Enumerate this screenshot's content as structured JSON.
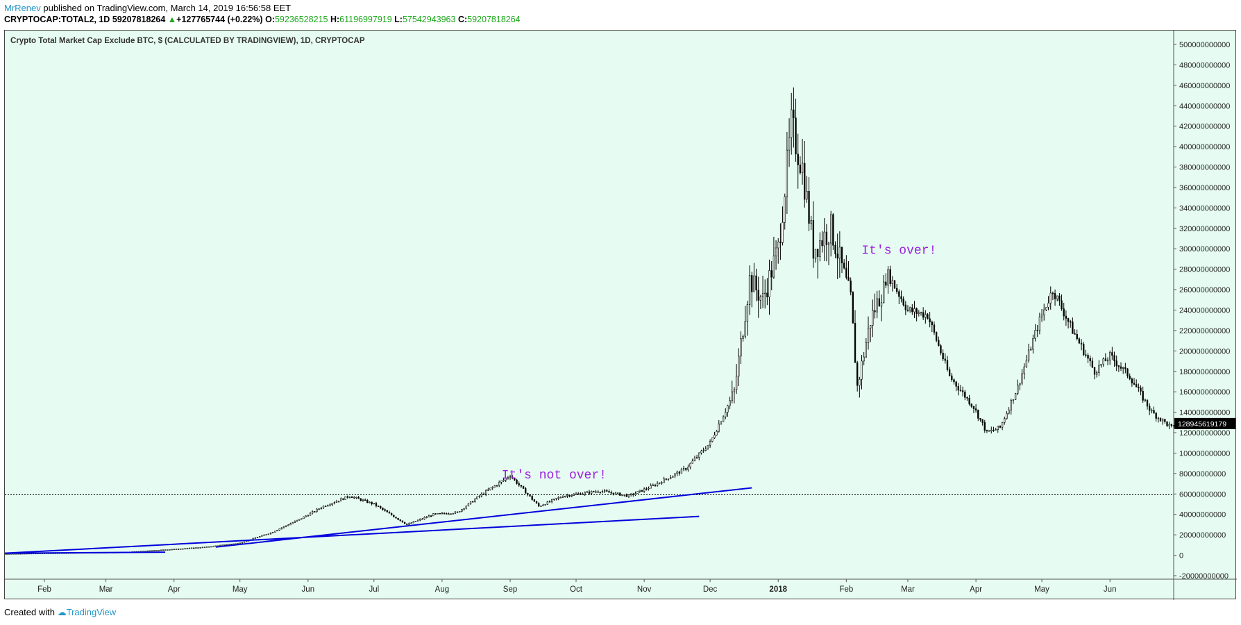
{
  "header": {
    "author": "MrRenev",
    "published_text": " published on TradingView.com, March 14, 2019 16:56:58 EET",
    "symbol": "CRYPTOCAP:TOTAL2, 1D",
    "last": "59207818264",
    "change": "+127765744 (+0.22%)",
    "open_label": "O:",
    "open": "59236528215",
    "high_label": "H:",
    "high": "61196997919",
    "low_label": "L:",
    "low": "57542943963",
    "close_label": "C:",
    "close": "59207818264"
  },
  "footer": {
    "created_with": "Created with",
    "brand": "TradingView"
  },
  "colors": {
    "background": "#e6fbf1",
    "candles": "#000000",
    "trendlines": "#0000dd",
    "annotation": "#9b1ee0",
    "price_label_bg": "#000000"
  },
  "chart_data": {
    "type": "candlestick",
    "title": "Crypto Total Market Cap Exclude BTC, $ (CALCULATED BY TRADINGVIEW), 1D, CRYPTOCAP",
    "y_ticks": [
      "500000000000",
      "480000000000",
      "460000000000",
      "440000000000",
      "420000000000",
      "400000000000",
      "380000000000",
      "360000000000",
      "340000000000",
      "320000000000",
      "300000000000",
      "280000000000",
      "260000000000",
      "240000000000",
      "220000000000",
      "200000000000",
      "180000000000",
      "160000000000",
      "140000000000",
      "120000000000",
      "100000000000",
      "80000000000",
      "60000000000",
      "40000000000",
      "20000000000",
      "0",
      "-20000000000"
    ],
    "ylim": [
      -20000000000,
      500000000000
    ],
    "x_ticks": [
      "Feb",
      "Mar",
      "Apr",
      "May",
      "Jun",
      "Jul",
      "Aug",
      "Sep",
      "Oct",
      "Nov",
      "Dec",
      "2018",
      "Feb",
      "Mar",
      "Apr",
      "May",
      "Jun"
    ],
    "x_range": [
      "2017-01-14",
      "2018-06-30"
    ],
    "current_price_label": "128945619179",
    "current_price": 128945619179,
    "reference_level": 59207818264,
    "series_anchor_points": [
      [
        "2017-01-14",
        1500000000.0
      ],
      [
        "2017-02-15",
        2500000000.0
      ],
      [
        "2017-03-10",
        3000000000.0
      ],
      [
        "2017-03-25",
        5000000000.0
      ],
      [
        "2017-04-15",
        8000000000.0
      ],
      [
        "2017-05-01",
        12000000000.0
      ],
      [
        "2017-05-15",
        22000000000.0
      ],
      [
        "2017-05-28",
        35000000000.0
      ],
      [
        "2017-06-08",
        48000000000.0
      ],
      [
        "2017-06-20",
        58000000000.0
      ],
      [
        "2017-07-01",
        50000000000.0
      ],
      [
        "2017-07-16",
        30000000000.0
      ],
      [
        "2017-07-28",
        40000000000.0
      ],
      [
        "2017-08-08",
        42000000000.0
      ],
      [
        "2017-08-18",
        58000000000.0
      ],
      [
        "2017-09-01",
        78000000000.0
      ],
      [
        "2017-09-14",
        48000000000.0
      ],
      [
        "2017-09-25",
        58000000000.0
      ],
      [
        "2017-10-12",
        63000000000.0
      ],
      [
        "2017-10-25",
        58000000000.0
      ],
      [
        "2017-11-05",
        68000000000.0
      ],
      [
        "2017-11-20",
        85000000000.0
      ],
      [
        "2017-12-01",
        110000000000.0
      ],
      [
        "2017-12-12",
        160000000000.0
      ],
      [
        "2017-12-19",
        270000000000.0
      ],
      [
        "2017-12-25",
        250000000000.0
      ],
      [
        "2018-01-01",
        300000000000.0
      ],
      [
        "2018-01-07",
        420000000000.0
      ],
      [
        "2018-01-12",
        380000000000.0
      ],
      [
        "2018-01-17",
        300000000000.0
      ],
      [
        "2018-01-25",
        320000000000.0
      ],
      [
        "2018-02-03",
        250000000000.0
      ],
      [
        "2018-02-06",
        165000000000.0
      ],
      [
        "2018-02-12",
        230000000000.0
      ],
      [
        "2018-02-20",
        275000000000.0
      ],
      [
        "2018-03-01",
        240000000000.0
      ],
      [
        "2018-03-10",
        235000000000.0
      ],
      [
        "2018-03-20",
        175000000000.0
      ],
      [
        "2018-03-31",
        145000000000.0
      ],
      [
        "2018-04-06",
        120000000000.0
      ],
      [
        "2018-04-12",
        125000000000.0
      ],
      [
        "2018-04-20",
        165000000000.0
      ],
      [
        "2018-04-30",
        230000000000.0
      ],
      [
        "2018-05-06",
        260000000000.0
      ],
      [
        "2018-05-15",
        220000000000.0
      ],
      [
        "2018-05-25",
        180000000000.0
      ],
      [
        "2018-06-01",
        195000000000.0
      ],
      [
        "2018-06-10",
        175000000000.0
      ],
      [
        "2018-06-20",
        140000000000.0
      ],
      [
        "2018-06-29",
        125000000000.0
      ]
    ],
    "trendlines": [
      {
        "from": [
          "2017-01-14",
          2000000000.0
        ],
        "to": [
          "2017-03-28",
          3000000000.0
        ]
      },
      {
        "from": [
          "2017-01-14",
          2000000000.0
        ],
        "to": [
          "2017-11-26",
          38000000000.0
        ]
      },
      {
        "from": [
          "2017-04-20",
          8000000000.0
        ],
        "to": [
          "2017-12-20",
          66000000000.0
        ]
      }
    ],
    "annotations": [
      {
        "text": "It's not over!",
        "at": [
          "2017-09-21",
          75000000000.0
        ]
      },
      {
        "text": "It's over!",
        "at": [
          "2018-02-25",
          295000000000.0
        ]
      }
    ],
    "grid": false
  }
}
